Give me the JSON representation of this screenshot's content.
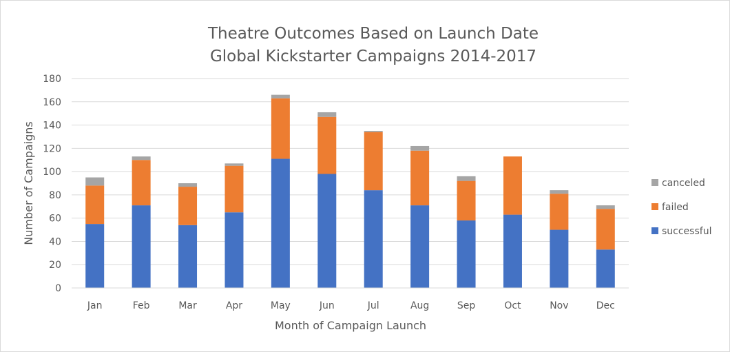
{
  "chart_data": {
    "type": "bar",
    "stacked": true,
    "title": "Theatre Outcomes Based on Launch Date",
    "subtitle": "Global Kickstarter Campaigns 2014-2017",
    "xlabel": "Month of Campaign Launch",
    "ylabel": "Number of Campaigns",
    "ylim": [
      0,
      180
    ],
    "yticks": [
      0,
      20,
      40,
      60,
      80,
      100,
      120,
      140,
      160,
      180
    ],
    "grid": true,
    "legend_position": "right",
    "categories": [
      "Jan",
      "Feb",
      "Mar",
      "Apr",
      "May",
      "Jun",
      "Jul",
      "Aug",
      "Sep",
      "Oct",
      "Nov",
      "Dec"
    ],
    "series": [
      {
        "name": "successful",
        "color": "#4472c4",
        "values": [
          55,
          71,
          54,
          65,
          111,
          98,
          84,
          71,
          58,
          63,
          50,
          33
        ]
      },
      {
        "name": "failed",
        "color": "#ed7d31",
        "values": [
          33,
          39,
          33,
          40,
          52,
          49,
          50,
          47,
          34,
          50,
          31,
          35
        ]
      },
      {
        "name": "canceled",
        "color": "#a5a5a5",
        "values": [
          7,
          3,
          3,
          2,
          3,
          4,
          1,
          4,
          4,
          0,
          3,
          3
        ]
      }
    ]
  }
}
